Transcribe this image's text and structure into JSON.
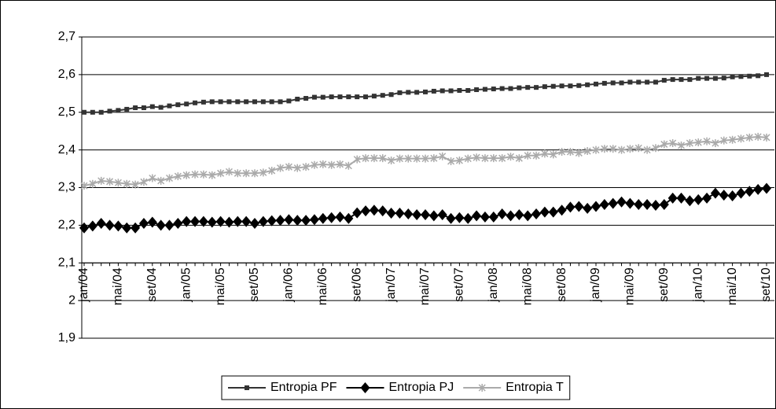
{
  "chart_data": {
    "type": "line",
    "categories": [
      "jan/04",
      null,
      null,
      null,
      "mai/04",
      null,
      null,
      null,
      "set/04",
      null,
      null,
      null,
      "jan/05",
      null,
      null,
      null,
      "mai/05",
      null,
      null,
      null,
      "set/05",
      null,
      null,
      null,
      "jan/06",
      null,
      null,
      null,
      "mai/06",
      null,
      null,
      null,
      "set/06",
      null,
      null,
      null,
      "jan/07",
      null,
      null,
      null,
      "mai/07",
      null,
      null,
      null,
      "set/07",
      null,
      null,
      null,
      "jan/08",
      null,
      null,
      null,
      "mai/08",
      null,
      null,
      null,
      "set/08",
      null,
      null,
      null,
      "jan/09",
      null,
      null,
      null,
      "mai/09",
      null,
      null,
      null,
      "set/09",
      null,
      null,
      null,
      "jan/10",
      null,
      null,
      null,
      "mai/10",
      null,
      null,
      null,
      "set/10"
    ],
    "series": [
      {
        "name": "Entropia PF",
        "color": "#333333",
        "marker": "square",
        "values": [
          2.5,
          2.5,
          2.5,
          2.503,
          2.505,
          2.508,
          2.512,
          2.512,
          2.515,
          2.513,
          2.517,
          2.52,
          2.522,
          2.525,
          2.527,
          2.528,
          2.528,
          2.528,
          2.528,
          2.528,
          2.528,
          2.528,
          2.528,
          2.528,
          2.53,
          2.535,
          2.537,
          2.54,
          2.54,
          2.541,
          2.541,
          2.541,
          2.541,
          2.541,
          2.543,
          2.545,
          2.547,
          2.552,
          2.553,
          2.553,
          2.554,
          2.556,
          2.557,
          2.557,
          2.558,
          2.558,
          2.56,
          2.561,
          2.562,
          2.563,
          2.563,
          2.565,
          2.566,
          2.566,
          2.568,
          2.569,
          2.57,
          2.57,
          2.571,
          2.573,
          2.575,
          2.577,
          2.578,
          2.578,
          2.58,
          2.58,
          2.58,
          2.58,
          2.585,
          2.587,
          2.587,
          2.587,
          2.59,
          2.59,
          2.59,
          2.591,
          2.594,
          2.595,
          2.596,
          2.597,
          2.6
        ]
      },
      {
        "name": "Entropia PJ",
        "color": "#000000",
        "marker": "diamond",
        "values": [
          2.193,
          2.198,
          2.205,
          2.2,
          2.198,
          2.193,
          2.193,
          2.205,
          2.208,
          2.2,
          2.2,
          2.205,
          2.21,
          2.21,
          2.21,
          2.208,
          2.21,
          2.208,
          2.21,
          2.21,
          2.205,
          2.21,
          2.212,
          2.213,
          2.215,
          2.213,
          2.213,
          2.215,
          2.218,
          2.22,
          2.222,
          2.218,
          2.233,
          2.238,
          2.24,
          2.238,
          2.232,
          2.232,
          2.23,
          2.228,
          2.228,
          2.225,
          2.228,
          2.218,
          2.22,
          2.218,
          2.225,
          2.222,
          2.222,
          2.23,
          2.225,
          2.228,
          2.225,
          2.23,
          2.235,
          2.235,
          2.24,
          2.248,
          2.25,
          2.245,
          2.25,
          2.255,
          2.258,
          2.262,
          2.258,
          2.255,
          2.255,
          2.253,
          2.255,
          2.272,
          2.272,
          2.265,
          2.268,
          2.272,
          2.285,
          2.28,
          2.278,
          2.285,
          2.29,
          2.295,
          2.298
        ]
      },
      {
        "name": "Entropia T",
        "color": "#aaaaaa",
        "marker": "star",
        "values": [
          2.305,
          2.31,
          2.318,
          2.316,
          2.313,
          2.31,
          2.308,
          2.315,
          2.325,
          2.318,
          2.325,
          2.33,
          2.333,
          2.335,
          2.335,
          2.333,
          2.338,
          2.342,
          2.338,
          2.338,
          2.338,
          2.34,
          2.345,
          2.352,
          2.355,
          2.352,
          2.355,
          2.36,
          2.362,
          2.36,
          2.362,
          2.358,
          2.375,
          2.378,
          2.378,
          2.378,
          2.372,
          2.377,
          2.377,
          2.377,
          2.377,
          2.378,
          2.383,
          2.37,
          2.372,
          2.377,
          2.38,
          2.378,
          2.378,
          2.378,
          2.382,
          2.378,
          2.385,
          2.385,
          2.39,
          2.388,
          2.395,
          2.395,
          2.392,
          2.397,
          2.4,
          2.403,
          2.403,
          2.4,
          2.403,
          2.405,
          2.4,
          2.405,
          2.415,
          2.418,
          2.412,
          2.418,
          2.42,
          2.423,
          2.418,
          2.425,
          2.427,
          2.43,
          2.433,
          2.435,
          2.433
        ]
      }
    ],
    "ylim": [
      1.9,
      2.7
    ],
    "yticks": [
      {
        "value": 1.9,
        "label": "1,9"
      },
      2,
      {
        "value": 2.1,
        "label": "2,1"
      },
      {
        "value": 2.2,
        "label": "2,2"
      },
      {
        "value": 2.3,
        "label": "2,3"
      },
      {
        "value": 2.4,
        "label": "2,4"
      },
      {
        "value": 2.5,
        "label": "2,5"
      },
      {
        "value": 2.6,
        "label": "2,6"
      },
      {
        "value": 2.7,
        "label": "2,7"
      }
    ],
    "x_axis_crosses": 2.1,
    "grid": true,
    "legend": "bottom"
  }
}
